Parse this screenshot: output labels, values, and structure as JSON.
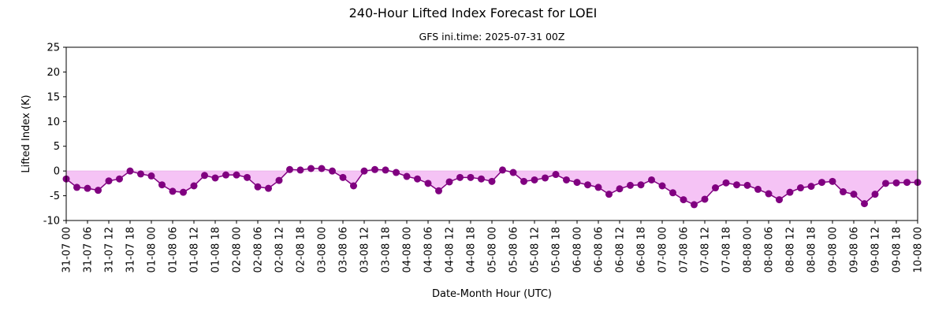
{
  "chart_data": {
    "type": "line",
    "title": "240-Hour Lifted Index Forecast for LOEI",
    "subtitle": "GFS ini.time: 2025-07-31 00Z",
    "xlabel": "Date-Month Hour (UTC)",
    "ylabel": "Lifted Index (K)",
    "ylim": [
      -10,
      25
    ],
    "yticks": [
      -10,
      -5,
      0,
      5,
      10,
      15,
      20,
      25
    ],
    "x_interval_hours": 3,
    "x_tick_every_hours": 6,
    "x": [
      "31-07 00",
      "31-07 03",
      "31-07 06",
      "31-07 09",
      "31-07 12",
      "31-07 15",
      "31-07 18",
      "31-07 21",
      "01-08 00",
      "01-08 03",
      "01-08 06",
      "01-08 09",
      "01-08 12",
      "01-08 15",
      "01-08 18",
      "01-08 21",
      "02-08 00",
      "02-08 03",
      "02-08 06",
      "02-08 09",
      "02-08 12",
      "02-08 15",
      "02-08 18",
      "02-08 21",
      "03-08 00",
      "03-08 03",
      "03-08 06",
      "03-08 09",
      "03-08 12",
      "03-08 15",
      "03-08 18",
      "03-08 21",
      "04-08 00",
      "04-08 03",
      "04-08 06",
      "04-08 09",
      "04-08 12",
      "04-08 15",
      "04-08 18",
      "04-08 21",
      "05-08 00",
      "05-08 03",
      "05-08 06",
      "05-08 09",
      "05-08 12",
      "05-08 15",
      "05-08 18",
      "05-08 21",
      "06-08 00",
      "06-08 03",
      "06-08 06",
      "06-08 09",
      "06-08 12",
      "06-08 15",
      "06-08 18",
      "06-08 21",
      "07-08 00",
      "07-08 03",
      "07-08 06",
      "07-08 09",
      "07-08 12",
      "07-08 15",
      "07-08 18",
      "07-08 21",
      "08-08 00",
      "08-08 03",
      "08-08 06",
      "08-08 09",
      "08-08 12",
      "08-08 15",
      "08-08 18",
      "08-08 21",
      "09-08 00",
      "09-08 03",
      "09-08 06",
      "09-08 09",
      "09-08 12",
      "09-08 15",
      "09-08 18",
      "09-08 21",
      "10-08 00"
    ],
    "series": [
      {
        "values": [
          -1.6,
          -3.3,
          -3.5,
          -3.9,
          -2.0,
          -1.6,
          0.0,
          -0.6,
          -1.0,
          -2.8,
          -4.1,
          -4.3,
          -3.0,
          -0.9,
          -1.4,
          -0.8,
          -0.8,
          -1.3,
          -3.2,
          -3.5,
          -1.9,
          0.3,
          0.2,
          0.5,
          0.5,
          0.0,
          -1.3,
          -3.0,
          0.0,
          0.3,
          0.2,
          -0.3,
          -1.1,
          -1.6,
          -2.5,
          -4.0,
          -2.2,
          -1.3,
          -1.3,
          -1.6,
          -2.1,
          0.2,
          -0.3,
          -2.1,
          -1.8,
          -1.4,
          -0.7,
          -1.8,
          -2.3,
          -2.8,
          -3.3,
          -4.7,
          -3.6,
          -2.9,
          -2.8,
          -1.8,
          -3.0,
          -4.4,
          -5.8,
          -6.8,
          -5.7,
          -3.4,
          -2.4,
          -2.8,
          -2.9,
          -3.7,
          -4.6,
          -5.8,
          -4.3,
          -3.4,
          -3.1,
          -2.3,
          -2.1,
          -4.2,
          -4.7,
          -6.6,
          -4.7,
          -2.5,
          -2.4,
          -2.3,
          -2.3
        ],
        "color": "#800080",
        "fill_color": "#f5c3f5"
      }
    ],
    "grid": false,
    "legend": "none"
  }
}
